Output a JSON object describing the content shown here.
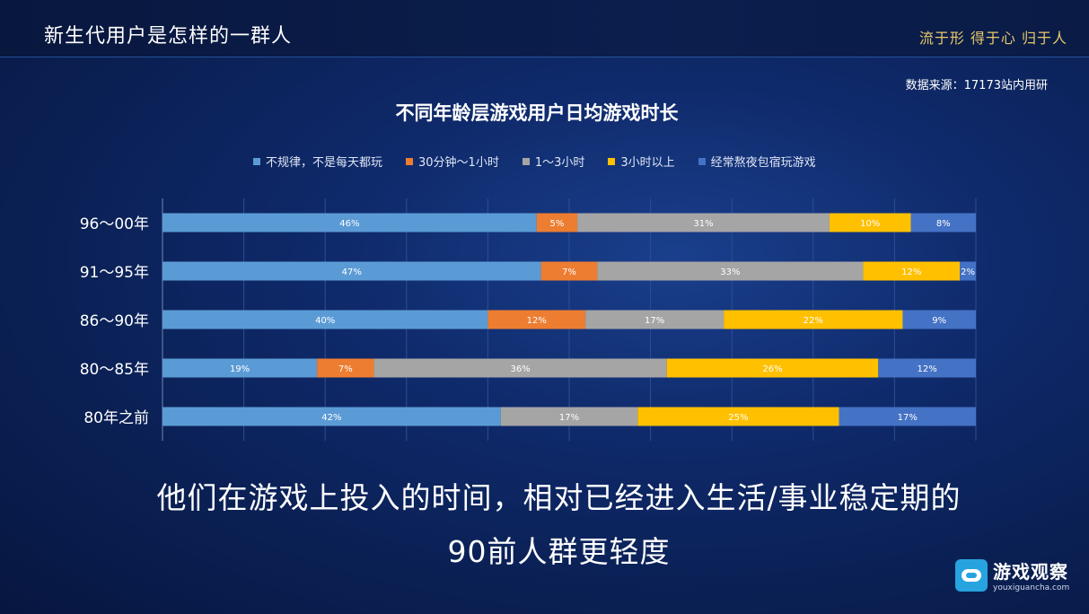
{
  "header": {
    "title": "新生代用户是怎样的一群人",
    "motto": "流于形  得于心  归于人"
  },
  "source": "数据来源：17173站内用研",
  "caption": {
    "line1": "他们在游戏上投入的时间，相对已经进入生活/事业稳定期的",
    "line2": "90前人群更轻度"
  },
  "logo": {
    "name": "游戏观察",
    "url": "youxiguancha.com"
  },
  "chart_data": {
    "type": "bar",
    "orientation": "horizontal",
    "stacked": true,
    "title": "不同年龄层游戏用户日均游戏时长",
    "categories": [
      "96～00年",
      "91～95年",
      "86～90年",
      "80～85年",
      "80年之前"
    ],
    "series": [
      {
        "name": "不规律，不是每天都玩",
        "color": "#5b9bd5",
        "values": [
          46,
          47,
          40,
          19,
          42
        ],
        "labels": [
          "46%",
          "47%",
          "40%",
          "19%",
          "42%"
        ]
      },
      {
        "name": "30分钟～1小时",
        "color": "#ed7d31",
        "values": [
          5,
          7,
          12,
          7,
          0
        ],
        "labels": [
          "5%",
          "7%",
          "12%",
          "7%",
          ""
        ]
      },
      {
        "name": "1～3小时",
        "color": "#a5a5a5",
        "values": [
          31,
          33,
          17,
          36,
          17
        ],
        "labels": [
          "31%",
          "33%",
          "17%",
          "36%",
          "17%"
        ]
      },
      {
        "name": "3小时以上",
        "color": "#ffc000",
        "values": [
          10,
          12,
          22,
          26,
          25
        ],
        "labels": [
          "10%",
          "12%",
          "22%",
          "26%",
          "25%"
        ]
      },
      {
        "name": "经常熬夜包宿玩游戏",
        "color": "#4472c4",
        "values": [
          8,
          2,
          9,
          12,
          17
        ],
        "labels": [
          "8%",
          "2%",
          "9%",
          "12%",
          "17%"
        ]
      }
    ],
    "legend": "top",
    "grid": true
  }
}
